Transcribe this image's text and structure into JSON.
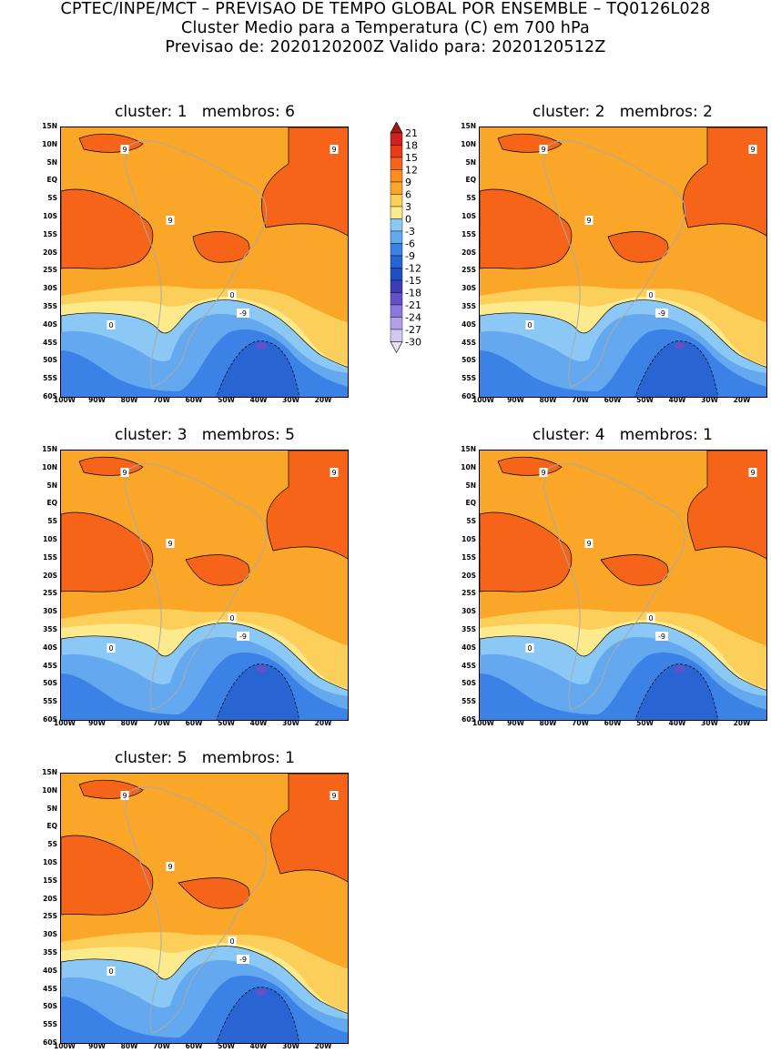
{
  "header": {
    "line1": "CPTEC/INPE/MCT – PREVISAO DE TEMPO GLOBAL POR ENSEMBLE – TQ0126L028",
    "line2": "Cluster Medio para a Temperatura (C) em 700 hPa",
    "line3": "Previsao de: 2020120200Z   Valido para: 2020120512Z"
  },
  "panels": [
    {
      "cluster_label": "cluster:",
      "cluster": "1",
      "members_label": "membros:",
      "members": "6"
    },
    {
      "cluster_label": "cluster:",
      "cluster": "2",
      "members_label": "membros:",
      "members": "2"
    },
    {
      "cluster_label": "cluster:",
      "cluster": "3",
      "members_label": "membros:",
      "members": "5"
    },
    {
      "cluster_label": "cluster:",
      "cluster": "4",
      "members_label": "membros:",
      "members": "1"
    },
    {
      "cluster_label": "cluster:",
      "cluster": "5",
      "members_label": "membros:",
      "members": "1"
    }
  ],
  "lat_labels": [
    "15N",
    "10N",
    "5N",
    "EQ",
    "5S",
    "10S",
    "15S",
    "20S",
    "25S",
    "30S",
    "35S",
    "40S",
    "45S",
    "50S",
    "55S",
    "60S"
  ],
  "lon_labels": [
    "100W",
    "90W",
    "80W",
    "70W",
    "60W",
    "50W",
    "40W",
    "30W",
    "20W"
  ],
  "contour_labels": {
    "warm": "9",
    "zero": "0",
    "cold": "-9"
  },
  "colorbar": {
    "levels": [
      "21",
      "18",
      "15",
      "12",
      "9",
      "6",
      "3",
      "0",
      "-3",
      "-6",
      "-9",
      "-12",
      "-15",
      "-18",
      "-21",
      "-24",
      "-27",
      "-30"
    ],
    "colors": [
      "#a01818",
      "#d02020",
      "#e83c14",
      "#f56418",
      "#ff8c1e",
      "#faa628",
      "#fccf5a",
      "#fdea8c",
      "#8cc8f5",
      "#64a8f0",
      "#3c82e6",
      "#2864d2",
      "#1e50c3",
      "#3c3cb4",
      "#6450c8",
      "#8c78dc",
      "#b4a0e6",
      "#d2c8f0",
      "#e6e0f8"
    ]
  },
  "palette": {
    "warm_dark": "#f56418",
    "warm": "#faa628",
    "warm_light": "#fccf5a",
    "pale": "#fdea8c",
    "cold1": "#8cc8f5",
    "cold2": "#64a8f0",
    "cold3": "#3c82e6",
    "cold4": "#2864d2",
    "cold5": "#6450c8",
    "coast": "#aaaaaa"
  }
}
